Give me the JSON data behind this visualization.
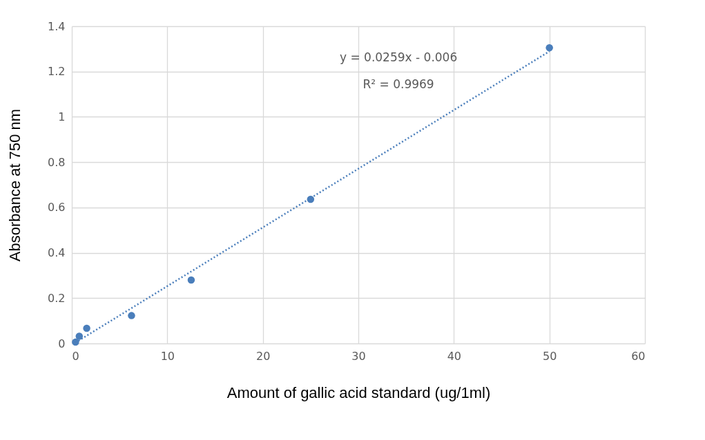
{
  "chart_data": {
    "type": "scatter",
    "xlabel": "Amount of gallic acid standard (ug/1ml)",
    "ylabel": "Absorbance at 750 nm",
    "xlim": [
      0,
      60
    ],
    "ylim": [
      0,
      1.4
    ],
    "xticks": [
      0,
      10,
      20,
      30,
      40,
      50,
      60
    ],
    "yticks": [
      0,
      0.2,
      0.4,
      0.6,
      0.8,
      1,
      1.2,
      1.4
    ],
    "grid": true,
    "series": [
      {
        "color": "#4a7ebb",
        "marker": "circle",
        "x": [
          0.39,
          0.78,
          1.56,
          6.25,
          12.5,
          25,
          50
        ],
        "values": [
          0.006,
          0.032,
          0.067,
          0.123,
          0.28,
          0.636,
          1.305
        ]
      },
      {
        "type": "line",
        "color": "#4a7ebb",
        "line_style": "dotted",
        "x": [
          0.39,
          50
        ],
        "values": [
          0.004,
          1.289
        ]
      }
    ],
    "annotations": [
      "y = 0.0259x - 0.006",
      "R² = 0.9969"
    ]
  }
}
